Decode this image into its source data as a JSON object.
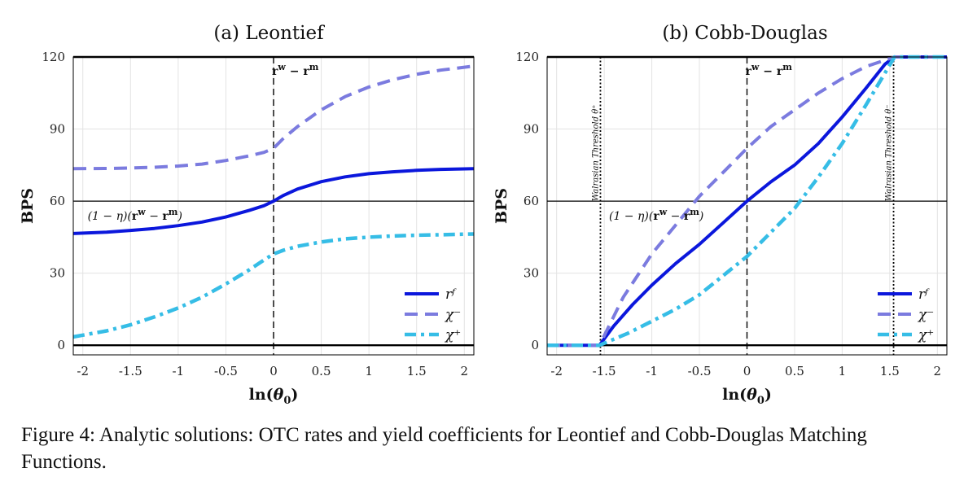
{
  "figure": {
    "caption": "Figure 4:  Analytic solutions: OTC rates and yield coefficients for Leontief and Cobb-Douglas Matching Functions."
  },
  "colors": {
    "rf": "#0b17dc",
    "chi_minus": "#7b7bdf",
    "chi_plus": "#36bde6",
    "grid": "#e3e3e3",
    "axis": "#000000"
  },
  "chart_data": [
    {
      "type": "line",
      "title": "(a) Leontief",
      "xlabel": "ln(θ0)",
      "ylabel": "BPS",
      "xlim": [
        -2.1,
        2.1
      ],
      "ylim": [
        -4,
        120
      ],
      "xticks": [
        -2,
        -1.5,
        -1,
        -0.5,
        0,
        0.5,
        1,
        1.5,
        2
      ],
      "xtick_labels": [
        "-2",
        "-1.5",
        "-1",
        "-0.5",
        "0",
        "0.5",
        "1",
        "1.5",
        "2"
      ],
      "yticks": [
        0,
        30,
        60,
        90,
        120
      ],
      "ytick_labels": [
        "0",
        "30",
        "60",
        "90",
        "120"
      ],
      "grid": true,
      "legend_position": "bottom-right",
      "hlines": [
        0,
        60,
        120
      ],
      "vlines": [
        {
          "x": 0,
          "style": "dashed",
          "label": "rʷ − rᵐ"
        }
      ],
      "annotations": [
        {
          "text": "(1 − η)(rʷ − rᵐ)"
        }
      ],
      "series": [
        {
          "name": "rᶠ",
          "style": "solid",
          "x": [
            -2.1,
            -1.75,
            -1.5,
            -1.25,
            -1.0,
            -0.75,
            -0.5,
            -0.25,
            -0.1,
            0.0,
            0.1,
            0.25,
            0.5,
            0.75,
            1.0,
            1.25,
            1.5,
            1.75,
            2.1
          ],
          "y": [
            46.5,
            47.1,
            47.8,
            48.6,
            49.8,
            51.3,
            53.4,
            56.2,
            58.1,
            60.0,
            62.3,
            65.0,
            68.1,
            70.1,
            71.4,
            72.2,
            72.8,
            73.2,
            73.5
          ]
        },
        {
          "name": "χ⁻",
          "style": "dashed",
          "x": [
            -2.1,
            -1.75,
            -1.5,
            -1.25,
            -1.0,
            -0.75,
            -0.5,
            -0.25,
            -0.1,
            0.0,
            0.1,
            0.25,
            0.5,
            0.75,
            1.0,
            1.25,
            1.5,
            1.75,
            2.1
          ],
          "y": [
            73.5,
            73.6,
            73.8,
            74.1,
            74.6,
            75.4,
            76.9,
            78.9,
            80.3,
            82.0,
            86.0,
            91.0,
            98.0,
            103.5,
            107.5,
            110.5,
            112.8,
            114.5,
            116.2
          ]
        },
        {
          "name": "χ⁺",
          "style": "dashdot",
          "x": [
            -2.1,
            -1.75,
            -1.5,
            -1.25,
            -1.0,
            -0.75,
            -0.5,
            -0.25,
            -0.1,
            0.0,
            0.1,
            0.25,
            0.5,
            0.75,
            1.0,
            1.25,
            1.5,
            1.75,
            2.1
          ],
          "y": [
            3.5,
            6.0,
            8.5,
            11.8,
            15.5,
            20.0,
            25.5,
            31.5,
            35.5,
            38.0,
            39.5,
            41.2,
            43.0,
            44.3,
            45.0,
            45.5,
            45.8,
            46.0,
            46.3
          ]
        }
      ]
    },
    {
      "type": "line",
      "title": "(b) Cobb-Douglas",
      "xlabel": "ln(θ0)",
      "ylabel": "BPS",
      "xlim": [
        -2.1,
        2.1
      ],
      "ylim": [
        -4,
        120
      ],
      "xticks": [
        -2,
        -1.5,
        -1,
        -0.5,
        0,
        0.5,
        1,
        1.5,
        2
      ],
      "xtick_labels": [
        "-2",
        "-1.5",
        "-1",
        "-0.5",
        "0",
        "0.5",
        "1",
        "1.5",
        "2"
      ],
      "yticks": [
        0,
        30,
        60,
        90,
        120
      ],
      "ytick_labels": [
        "0",
        "30",
        "60",
        "90",
        "120"
      ],
      "grid": true,
      "legend_position": "bottom-right",
      "hlines": [
        0,
        60,
        120
      ],
      "vlines": [
        {
          "x": 0,
          "style": "dashed",
          "label": "rʷ − rᵐ"
        },
        {
          "x": -1.54,
          "style": "dotted",
          "label": "Walrasian Threshold θ⁺"
        },
        {
          "x": 1.54,
          "style": "dotted",
          "label": "Walrasian Threshold θ⁻"
        }
      ],
      "annotations": [
        {
          "text": "(1 − η)(rʷ − rᵐ)"
        }
      ],
      "series": [
        {
          "name": "rᶠ",
          "style": "solid",
          "x": [
            -2.1,
            -1.55,
            -1.4,
            -1.2,
            -1.0,
            -0.75,
            -0.5,
            -0.25,
            0.0,
            0.25,
            0.5,
            0.75,
            1.0,
            1.25,
            1.45,
            1.55,
            2.1
          ],
          "y": [
            0,
            0,
            8,
            17,
            25,
            34,
            42,
            51,
            60,
            68,
            75,
            84,
            95,
            107,
            117,
            120,
            120
          ]
        },
        {
          "name": "χ⁻",
          "style": "dashed",
          "x": [
            -2.1,
            -1.55,
            -1.3,
            -1.0,
            -0.75,
            -0.5,
            -0.25,
            0.0,
            0.25,
            0.5,
            0.75,
            1.0,
            1.25,
            1.55,
            2.1
          ],
          "y": [
            0,
            0,
            20,
            38,
            50,
            62,
            72,
            82,
            91,
            98,
            105,
            111,
            116,
            120,
            120
          ]
        },
        {
          "name": "χ⁺",
          "style": "dashdot",
          "x": [
            -2.1,
            -1.55,
            -1.25,
            -1.0,
            -0.75,
            -0.5,
            -0.25,
            0.0,
            0.25,
            0.5,
            0.75,
            1.0,
            1.25,
            1.55,
            2.1
          ],
          "y": [
            0,
            0,
            5,
            10,
            15,
            21,
            29,
            37,
            47,
            57,
            70,
            84,
            100,
            120,
            120
          ]
        }
      ]
    }
  ]
}
